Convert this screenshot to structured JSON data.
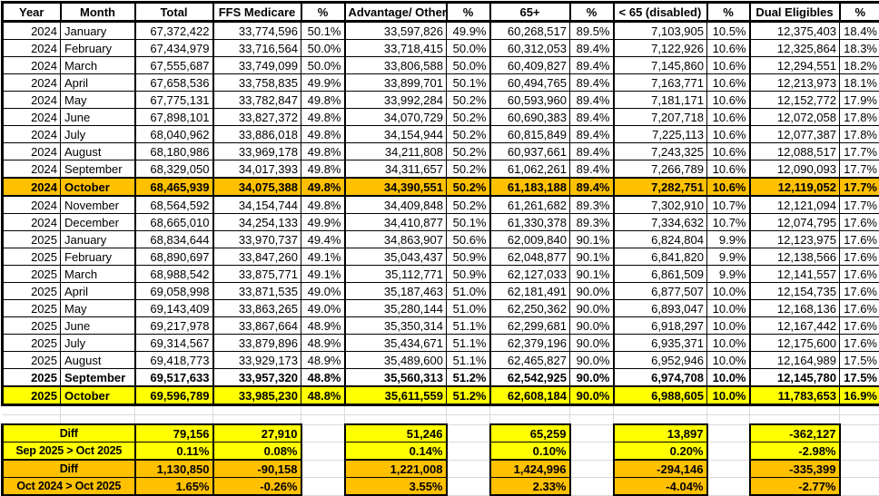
{
  "colors": {
    "highlight_orange": "#FFC000",
    "highlight_yellow": "#FFFF00",
    "grid_border": "#000000",
    "faint_gridline": "#D9D9D9"
  },
  "chart_data": {
    "type": "table",
    "columns": [
      "Year",
      "Month",
      "Total",
      "FFS\nMedicare",
      "%",
      "Advantage/\nOther",
      "%",
      "65+",
      "%",
      "< 65\n(disabled)",
      "%",
      "Dual\nEligibles",
      "%"
    ],
    "rows": [
      {
        "cells": [
          "2024",
          "January",
          "67,372,422",
          "33,774,596",
          "50.1%",
          "33,597,826",
          "49.9%",
          "60,268,517",
          "89.5%",
          "7,103,905",
          "10.5%",
          "12,375,403",
          "18.4%"
        ]
      },
      {
        "cells": [
          "2024",
          "February",
          "67,434,979",
          "33,716,564",
          "50.0%",
          "33,718,415",
          "50.0%",
          "60,312,053",
          "89.4%",
          "7,122,926",
          "10.6%",
          "12,325,864",
          "18.3%"
        ]
      },
      {
        "cells": [
          "2024",
          "March",
          "67,555,687",
          "33,749,099",
          "50.0%",
          "33,806,588",
          "50.0%",
          "60,409,827",
          "89.4%",
          "7,145,860",
          "10.6%",
          "12,294,551",
          "18.2%"
        ]
      },
      {
        "cells": [
          "2024",
          "April",
          "67,658,536",
          "33,758,835",
          "49.9%",
          "33,899,701",
          "50.1%",
          "60,494,765",
          "89.4%",
          "7,163,771",
          "10.6%",
          "12,213,973",
          "18.1%"
        ]
      },
      {
        "cells": [
          "2024",
          "May",
          "67,775,131",
          "33,782,847",
          "49.8%",
          "33,992,284",
          "50.2%",
          "60,593,960",
          "89.4%",
          "7,181,171",
          "10.6%",
          "12,152,772",
          "17.9%"
        ]
      },
      {
        "cells": [
          "2024",
          "June",
          "67,898,101",
          "33,827,372",
          "49.8%",
          "34,070,729",
          "50.2%",
          "60,690,383",
          "89.4%",
          "7,207,718",
          "10.6%",
          "12,072,058",
          "17.8%"
        ]
      },
      {
        "cells": [
          "2024",
          "July",
          "68,040,962",
          "33,886,018",
          "49.8%",
          "34,154,944",
          "50.2%",
          "60,815,849",
          "89.4%",
          "7,225,113",
          "10.6%",
          "12,077,387",
          "17.8%"
        ]
      },
      {
        "cells": [
          "2024",
          "August",
          "68,180,986",
          "33,969,178",
          "49.8%",
          "34,211,808",
          "50.2%",
          "60,937,661",
          "89.4%",
          "7,243,325",
          "10.6%",
          "12,088,517",
          "17.7%"
        ]
      },
      {
        "cells": [
          "2024",
          "September",
          "68,329,050",
          "34,017,393",
          "49.8%",
          "34,311,657",
          "50.2%",
          "61,062,261",
          "89.4%",
          "7,266,789",
          "10.6%",
          "12,090,093",
          "17.7%"
        ]
      },
      {
        "cells": [
          "2024",
          "October",
          "68,465,939",
          "34,075,388",
          "49.8%",
          "34,390,551",
          "50.2%",
          "61,183,188",
          "89.4%",
          "7,282,751",
          "10.6%",
          "12,119,052",
          "17.7%"
        ],
        "highlight": "orange",
        "bold": true
      },
      {
        "cells": [
          "2024",
          "November",
          "68,564,592",
          "34,154,744",
          "49.8%",
          "34,409,848",
          "50.2%",
          "61,261,682",
          "89.3%",
          "7,302,910",
          "10.7%",
          "12,121,094",
          "17.7%"
        ]
      },
      {
        "cells": [
          "2024",
          "December",
          "68,665,010",
          "34,254,133",
          "49.9%",
          "34,410,877",
          "50.1%",
          "61,330,378",
          "89.3%",
          "7,334,632",
          "10.7%",
          "12,074,795",
          "17.6%"
        ]
      },
      {
        "cells": [
          "2025",
          "January",
          "68,834,644",
          "33,970,737",
          "49.4%",
          "34,863,907",
          "50.6%",
          "62,009,840",
          "90.1%",
          "6,824,804",
          "9.9%",
          "12,123,975",
          "17.6%"
        ]
      },
      {
        "cells": [
          "2025",
          "February",
          "68,890,697",
          "33,847,260",
          "49.1%",
          "35,043,437",
          "50.9%",
          "62,048,877",
          "90.1%",
          "6,841,820",
          "9.9%",
          "12,138,566",
          "17.6%"
        ]
      },
      {
        "cells": [
          "2025",
          "March",
          "68,988,542",
          "33,875,771",
          "49.1%",
          "35,112,771",
          "50.9%",
          "62,127,033",
          "90.1%",
          "6,861,509",
          "9.9%",
          "12,141,557",
          "17.6%"
        ]
      },
      {
        "cells": [
          "2025",
          "April",
          "69,058,998",
          "33,871,535",
          "49.0%",
          "35,187,463",
          "51.0%",
          "62,181,491",
          "90.0%",
          "6,877,507",
          "10.0%",
          "12,154,735",
          "17.6%"
        ]
      },
      {
        "cells": [
          "2025",
          "May",
          "69,143,409",
          "33,863,265",
          "49.0%",
          "35,280,144",
          "51.0%",
          "62,250,362",
          "90.0%",
          "6,893,047",
          "10.0%",
          "12,168,136",
          "17.6%"
        ]
      },
      {
        "cells": [
          "2025",
          "June",
          "69,217,978",
          "33,867,664",
          "48.9%",
          "35,350,314",
          "51.1%",
          "62,299,681",
          "90.0%",
          "6,918,297",
          "10.0%",
          "12,167,442",
          "17.6%"
        ]
      },
      {
        "cells": [
          "2025",
          "July",
          "69,314,567",
          "33,879,896",
          "48.9%",
          "35,434,671",
          "51.1%",
          "62,379,196",
          "90.0%",
          "6,935,371",
          "10.0%",
          "12,175,600",
          "17.6%"
        ]
      },
      {
        "cells": [
          "2025",
          "August",
          "69,418,773",
          "33,929,173",
          "48.9%",
          "35,489,600",
          "51.1%",
          "62,465,827",
          "90.0%",
          "6,952,946",
          "10.0%",
          "12,164,989",
          "17.5%"
        ]
      },
      {
        "cells": [
          "2025",
          "September",
          "69,517,633",
          "33,957,320",
          "48.8%",
          "35,560,313",
          "51.2%",
          "62,542,925",
          "90.0%",
          "6,974,708",
          "10.0%",
          "12,145,780",
          "17.5%"
        ],
        "bold": true
      },
      {
        "cells": [
          "2025",
          "October",
          "69,596,789",
          "33,985,230",
          "48.8%",
          "35,611,559",
          "51.2%",
          "62,608,184",
          "90.0%",
          "6,988,605",
          "10.0%",
          "11,783,653",
          "16.9%"
        ],
        "highlight": "yellow",
        "bold": true
      }
    ],
    "summary": {
      "period_rows": [
        {
          "highlight": "yellow",
          "label_line1": "Diff",
          "label_line2": "Sep 2025 > Oct 2025",
          "diffs": [
            "79,156",
            "27,910",
            "51,246",
            "65,259",
            "13,897",
            "-362,127"
          ],
          "pcts": [
            "0.11%",
            "0.08%",
            "0.14%",
            "0.10%",
            "0.20%",
            "-2.98%"
          ]
        },
        {
          "highlight": "orange",
          "label_line1": "Diff",
          "label_line2": "Oct 2024 > Oct 2025",
          "diffs": [
            "1,130,850",
            "-90,158",
            "1,221,008",
            "1,424,996",
            "-294,146",
            "-335,399"
          ],
          "pcts": [
            "1.65%",
            "-0.26%",
            "3.55%",
            "2.33%",
            "-4.04%",
            "-2.77%"
          ]
        }
      ]
    }
  }
}
